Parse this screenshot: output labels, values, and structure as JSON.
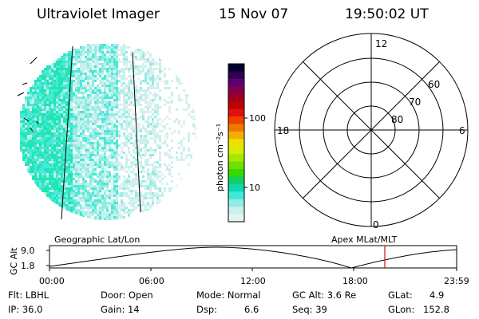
{
  "header": {
    "instrument": "Ultraviolet Imager",
    "date": "15 Nov 07",
    "time": "19:50:02 UT"
  },
  "colorbar": {
    "unit_label": "photon cm⁻²s⁻¹",
    "ticks": [
      "100",
      "10"
    ],
    "colors": [
      "#000033",
      "#300050",
      "#600070",
      "#800050",
      "#a00020",
      "#c00000",
      "#e01010",
      "#f04000",
      "#f07800",
      "#f0b000",
      "#f0e000",
      "#d8ee00",
      "#a8e800",
      "#70e000",
      "#38d800",
      "#10d060",
      "#10d8b0",
      "#40e8d8",
      "#90ece4",
      "#c8f0ec",
      "#e4f4f2"
    ]
  },
  "polar_plot": {
    "mlt_labels": {
      "top": "12",
      "left": "18",
      "right": "6",
      "bottom": "0"
    },
    "lat_labels": [
      "60",
      "70",
      "80"
    ]
  },
  "timeline": {
    "y_axis_title": "GC Alt",
    "y_ticks": [
      "9.0",
      "1.8"
    ],
    "left_title": "Geographic Lat/Lon",
    "right_title": "Apex MLat/MLT",
    "x_ticks": [
      "00:00",
      "06:00",
      "12:00",
      "18:00",
      "23:59"
    ],
    "current_marker_color": "#d01010"
  },
  "info": {
    "row1": {
      "flt": "Flt: LBHL",
      "door": "Door: Open",
      "mode": "Mode: Normal",
      "gc_alt": "GC Alt: 3.6 Re",
      "glat_label": "GLat:",
      "glat_value": "4.9"
    },
    "row2": {
      "ip": "IP: 36.0",
      "gain": "Gain: 14",
      "dsp_label": "Dsp:",
      "dsp_value": "6.6",
      "seq": "Seq: 39",
      "glon_label": "GLon:",
      "glon_value": "152.8"
    }
  }
}
